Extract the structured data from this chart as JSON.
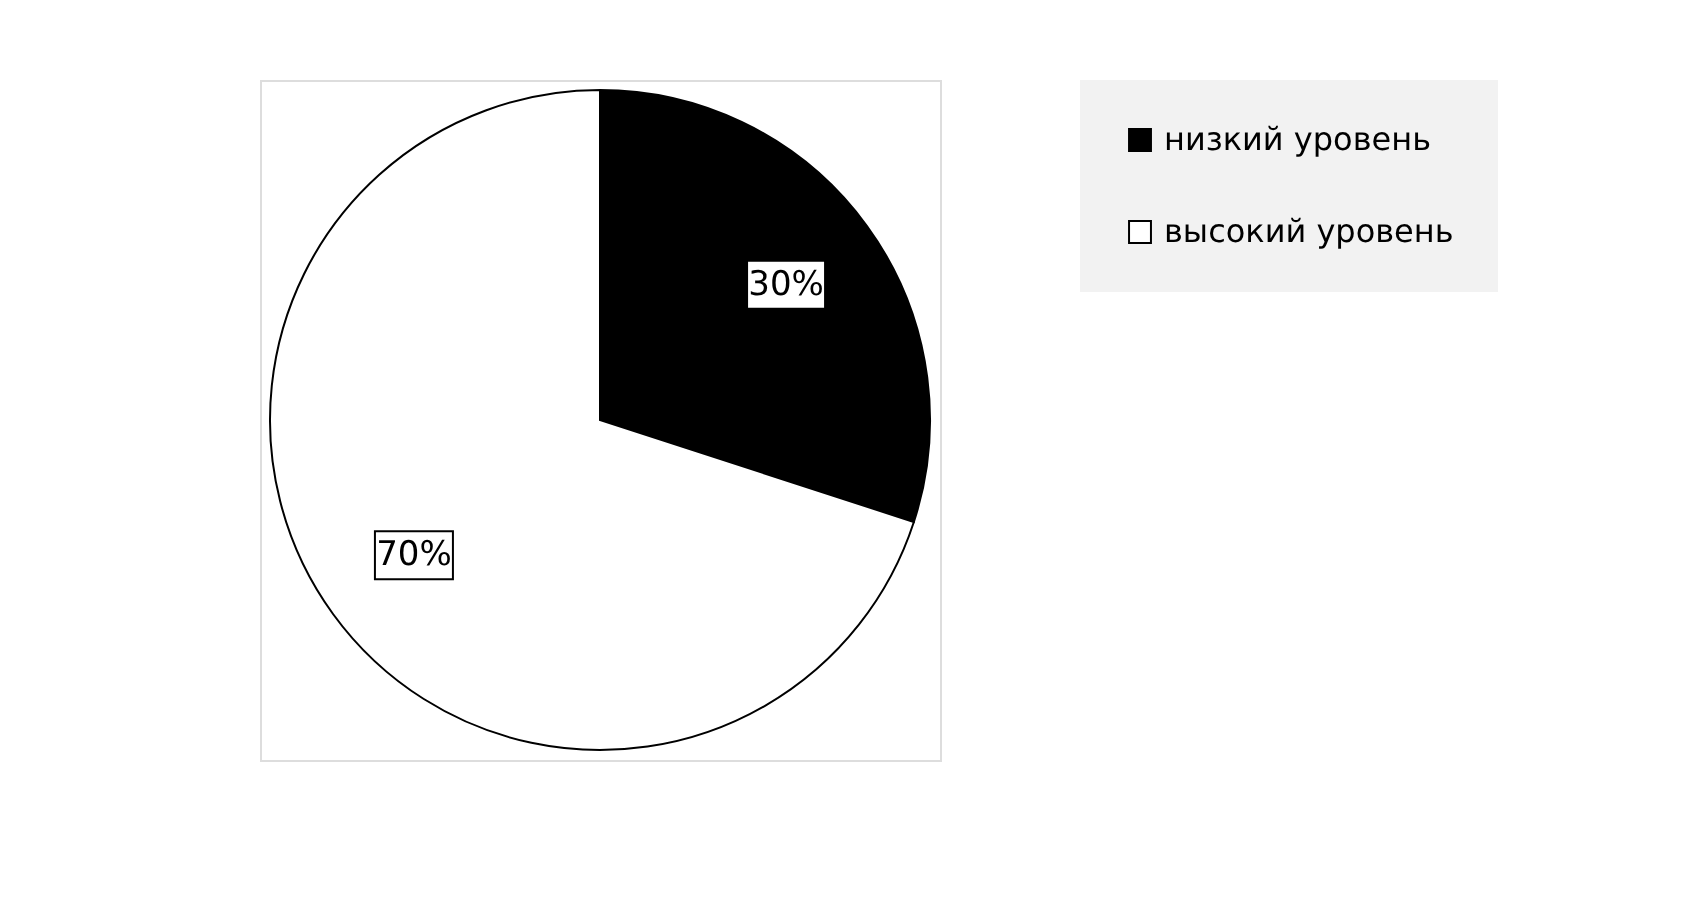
{
  "chart_data": {
    "type": "pie",
    "categories": [
      "низкий уровень",
      "высокий уровень"
    ],
    "values": [
      30,
      70
    ],
    "colors": [
      "#000000",
      "#ffffff"
    ],
    "value_labels": [
      "30%",
      "70%"
    ],
    "legend": "right"
  }
}
